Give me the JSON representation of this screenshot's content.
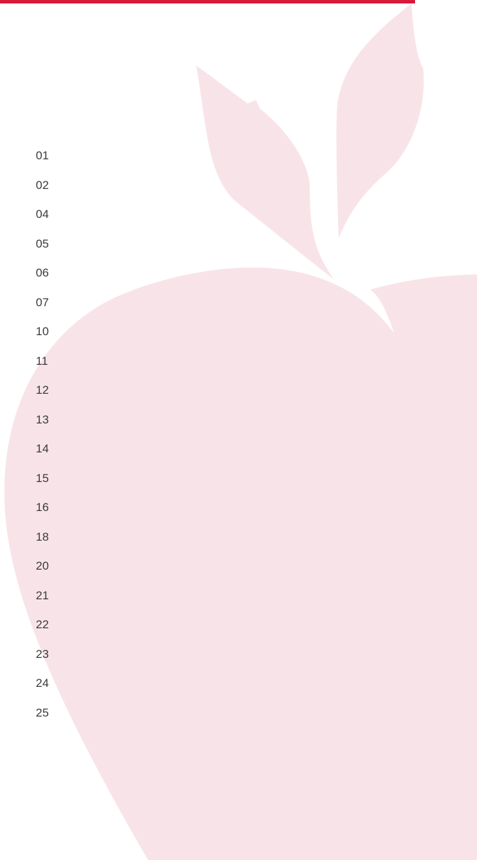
{
  "items": [
    "01",
    "02",
    "04",
    "05",
    "06",
    "07",
    "10",
    "11",
    "12",
    "13",
    "14",
    "15",
    "16",
    "18",
    "20",
    "21",
    "22",
    "23",
    "24",
    "25"
  ]
}
